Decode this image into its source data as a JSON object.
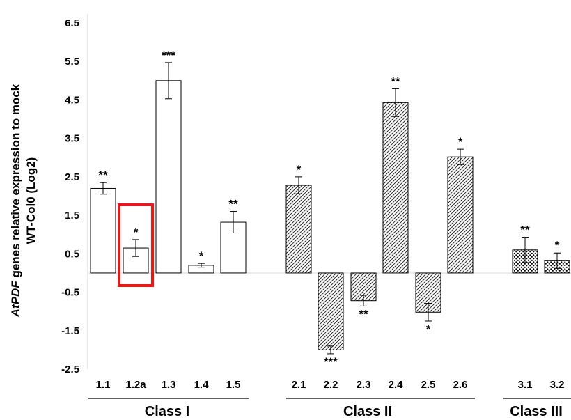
{
  "chart_data": {
    "type": "bar",
    "ylabel": {
      "line1_italic": "AtPDF",
      "line1_rest": " genes relative expression to mock",
      "line2": "WT-Col0 (Log2)"
    },
    "ylim": [
      -2.5,
      6.5
    ],
    "yticks": [
      -2.5,
      -1.5,
      -0.5,
      0.5,
      1.5,
      2.5,
      3.5,
      4.5,
      5.5,
      6.5
    ],
    "ytick_labels": [
      "-2.5",
      "-1.5",
      "-0.5",
      "0.5",
      "1.5",
      "2.5",
      "3.5",
      "4.5",
      "5.5",
      "6.5"
    ],
    "grid": false,
    "highlight": "1.2a",
    "groups": [
      {
        "name": "Class I",
        "pattern": "white",
        "bars": [
          {
            "label": "1.1",
            "value": 2.2,
            "err": 0.15,
            "sig": "**"
          },
          {
            "label": "1.2a",
            "value": 0.65,
            "err": 0.22,
            "sig": "*"
          },
          {
            "label": "1.3",
            "value": 5.0,
            "err": 0.47,
            "sig": "***"
          },
          {
            "label": "1.4",
            "value": 0.2,
            "err": 0.05,
            "sig": "*"
          },
          {
            "label": "1.5",
            "value": 1.32,
            "err": 0.28,
            "sig": "**"
          }
        ]
      },
      {
        "name": "Class II",
        "pattern": "hatched",
        "bars": [
          {
            "label": "2.1",
            "value": 2.28,
            "err": 0.22,
            "sig": "*"
          },
          {
            "label": "2.2",
            "value": -2.0,
            "err": 0.1,
            "sig": "***"
          },
          {
            "label": "2.3",
            "value": -0.72,
            "err": 0.14,
            "sig": "**"
          },
          {
            "label": "2.4",
            "value": 4.43,
            "err": 0.36,
            "sig": "**"
          },
          {
            "label": "2.5",
            "value": -1.02,
            "err": 0.23,
            "sig": "*"
          },
          {
            "label": "2.6",
            "value": 3.02,
            "err": 0.2,
            "sig": "*"
          }
        ]
      },
      {
        "name": "Class III",
        "pattern": "dotted",
        "bars": [
          {
            "label": "3.1",
            "value": 0.6,
            "err": 0.33,
            "sig": "**"
          },
          {
            "label": "3.2",
            "value": 0.32,
            "err": 0.2,
            "sig": "*"
          }
        ]
      }
    ],
    "colors": {
      "bar_stroke": "#000000",
      "highlight_box": "#e8181a",
      "dot": "#000000"
    }
  }
}
